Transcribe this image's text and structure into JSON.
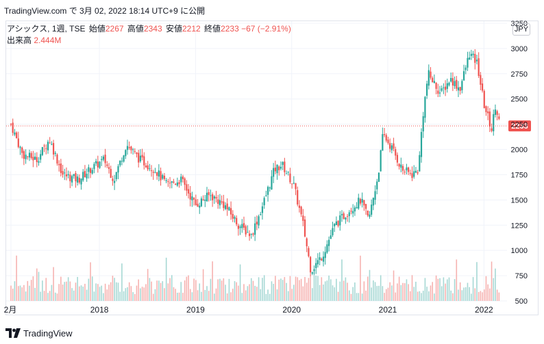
{
  "header": {
    "source": "TradingView.com で 3月 02, 2022 18:14 UTC+9 に公開"
  },
  "legend": {
    "symbol": "アシックス, 1週, TSE",
    "open_label": "始値",
    "open": "2267",
    "high_label": "高値",
    "high": "2343",
    "low_label": "安値",
    "low": "2212",
    "close_label": "終値",
    "close": "2233",
    "change": "−67 (−2.91%)",
    "volume_label": "出来高",
    "volume": "2.444M"
  },
  "currency_button": "JPY",
  "price_badge": "2233",
  "colors": {
    "up": "#26a69a",
    "down": "#ef5350",
    "up_vol": "#a6d8d4",
    "down_vol": "#f6b2b0",
    "grid": "#f0f3fa"
  },
  "chart_data": {
    "type": "candlestick",
    "title": "",
    "y_ticks": [
      "3250",
      "3000",
      "2750",
      "2500",
      "2250",
      "2000",
      "1750",
      "1500",
      "1250",
      "1000",
      "750",
      "500"
    ],
    "ylim": [
      500,
      3270
    ],
    "x_ticks": [
      "2月",
      "2018",
      "2019",
      "2020",
      "2021",
      "2022"
    ],
    "last_close": 2233,
    "series": [
      {
        "name": "price",
        "anchors": [
          {
            "t": 2017.08,
            "v": 2250
          },
          {
            "t": 2017.2,
            "v": 1950
          },
          {
            "t": 2017.35,
            "v": 1900
          },
          {
            "t": 2017.48,
            "v": 2100
          },
          {
            "t": 2017.62,
            "v": 1750
          },
          {
            "t": 2017.78,
            "v": 1700
          },
          {
            "t": 2017.9,
            "v": 1800
          },
          {
            "t": 2018.05,
            "v": 1900
          },
          {
            "t": 2018.15,
            "v": 1700
          },
          {
            "t": 2018.28,
            "v": 2050
          },
          {
            "t": 2018.42,
            "v": 1900
          },
          {
            "t": 2018.58,
            "v": 1800
          },
          {
            "t": 2018.7,
            "v": 1650
          },
          {
            "t": 2018.85,
            "v": 1700
          },
          {
            "t": 2019.0,
            "v": 1450
          },
          {
            "t": 2019.15,
            "v": 1550
          },
          {
            "t": 2019.3,
            "v": 1450
          },
          {
            "t": 2019.45,
            "v": 1250
          },
          {
            "t": 2019.58,
            "v": 1150
          },
          {
            "t": 2019.7,
            "v": 1450
          },
          {
            "t": 2019.82,
            "v": 1800
          },
          {
            "t": 2019.9,
            "v": 1850
          },
          {
            "t": 2020.02,
            "v": 1650
          },
          {
            "t": 2020.12,
            "v": 1250
          },
          {
            "t": 2020.2,
            "v": 800
          },
          {
            "t": 2020.32,
            "v": 950
          },
          {
            "t": 2020.45,
            "v": 1250
          },
          {
            "t": 2020.6,
            "v": 1400
          },
          {
            "t": 2020.72,
            "v": 1500
          },
          {
            "t": 2020.8,
            "v": 1300
          },
          {
            "t": 2020.9,
            "v": 1750
          },
          {
            "t": 2020.95,
            "v": 2150
          },
          {
            "t": 2021.05,
            "v": 2000
          },
          {
            "t": 2021.15,
            "v": 1800
          },
          {
            "t": 2021.25,
            "v": 1750
          },
          {
            "t": 2021.32,
            "v": 1800
          },
          {
            "t": 2021.36,
            "v": 2300
          },
          {
            "t": 2021.42,
            "v": 2750
          },
          {
            "t": 2021.55,
            "v": 2550
          },
          {
            "t": 2021.65,
            "v": 2700
          },
          {
            "t": 2021.75,
            "v": 2600
          },
          {
            "t": 2021.85,
            "v": 2950
          },
          {
            "t": 2021.93,
            "v": 2850
          },
          {
            "t": 2022.0,
            "v": 2450
          },
          {
            "t": 2022.08,
            "v": 2200
          },
          {
            "t": 2022.12,
            "v": 2450
          },
          {
            "t": 2022.17,
            "v": 2233
          }
        ]
      }
    ]
  },
  "footer": {
    "brand": "TradingView"
  }
}
